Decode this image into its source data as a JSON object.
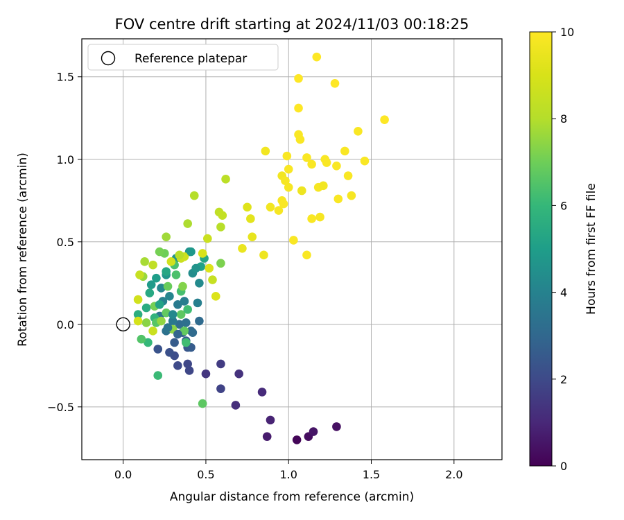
{
  "chart_data": {
    "type": "scatter",
    "title": "FOV centre drift starting at 2024/11/03 00:18:25",
    "xlabel": "Angular distance from reference (arcmin)",
    "ylabel": "Rotation from reference (arcmin)",
    "xlim": [
      -0.25,
      2.29
    ],
    "ylim": [
      -0.82,
      1.73
    ],
    "xticks": [
      0.0,
      0.5,
      1.0,
      1.5,
      2.0
    ],
    "xtick_labels": [
      "0.0",
      "0.5",
      "1.0",
      "1.5",
      "2.0"
    ],
    "yticks": [
      -0.5,
      0.0,
      0.5,
      1.0,
      1.5
    ],
    "ytick_labels": [
      "−0.5",
      "0.0",
      "0.5",
      "1.0",
      "1.5"
    ],
    "grid": true,
    "legend": {
      "placement": "top-left",
      "entries": [
        "Reference platepar"
      ]
    },
    "reference_point": {
      "x": 0.0,
      "y": 0.0,
      "label": "Reference platepar"
    },
    "colorbar": {
      "label": "Hours from first FF file",
      "range": [
        0,
        10
      ],
      "ticks": [
        0,
        2,
        4,
        6,
        8,
        10
      ],
      "tick_labels": [
        "0",
        "2",
        "4",
        "6",
        "8",
        "10"
      ],
      "colormap": "viridis"
    },
    "points": [
      [
        1.05,
        -0.7,
        0.1
      ],
      [
        1.12,
        -0.68,
        0.3
      ],
      [
        1.15,
        -0.65,
        0.5
      ],
      [
        1.29,
        -0.62,
        0.4
      ],
      [
        0.87,
        -0.68,
        0.7
      ],
      [
        0.89,
        -0.58,
        0.9
      ],
      [
        0.84,
        -0.41,
        1.1
      ],
      [
        0.68,
        -0.49,
        1.2
      ],
      [
        0.7,
        -0.3,
        1.3
      ],
      [
        0.5,
        -0.3,
        1.4
      ],
      [
        0.59,
        -0.24,
        1.6
      ],
      [
        0.59,
        -0.39,
        1.8
      ],
      [
        0.4,
        -0.28,
        1.9
      ],
      [
        0.39,
        -0.24,
        1.9
      ],
      [
        0.33,
        -0.25,
        2.0
      ],
      [
        0.31,
        -0.19,
        2.1
      ],
      [
        0.28,
        -0.17,
        2.2
      ],
      [
        0.21,
        -0.15,
        2.3
      ],
      [
        0.39,
        -0.14,
        2.4
      ],
      [
        0.41,
        -0.14,
        2.6
      ],
      [
        0.31,
        -0.11,
        2.6
      ],
      [
        0.38,
        -0.1,
        2.7
      ],
      [
        0.36,
        -0.05,
        2.8
      ],
      [
        0.41,
        -0.04,
        3.0
      ],
      [
        0.46,
        0.02,
        3.1
      ],
      [
        0.34,
        0.0,
        3.2
      ],
      [
        0.38,
        0.01,
        3.3
      ],
      [
        0.26,
        -0.04,
        3.4
      ],
      [
        0.22,
        0.05,
        3.5
      ],
      [
        0.3,
        0.02,
        3.6
      ],
      [
        0.33,
        0.12,
        3.7
      ],
      [
        0.37,
        0.14,
        3.8
      ],
      [
        0.45,
        0.13,
        3.9
      ],
      [
        0.24,
        0.14,
        4.0
      ],
      [
        0.28,
        0.17,
        4.1
      ],
      [
        0.23,
        0.22,
        4.2
      ],
      [
        0.46,
        0.25,
        4.3
      ],
      [
        0.42,
        0.31,
        4.4
      ],
      [
        0.4,
        0.44,
        4.5
      ],
      [
        0.32,
        0.4,
        4.6
      ],
      [
        0.26,
        0.3,
        4.7
      ],
      [
        0.17,
        0.24,
        4.9
      ],
      [
        0.2,
        0.28,
        5.0
      ],
      [
        0.47,
        0.35,
        5.1
      ],
      [
        0.49,
        0.4,
        5.3
      ],
      [
        0.14,
        0.1,
        5.5
      ],
      [
        0.09,
        0.06,
        5.6
      ],
      [
        0.19,
        0.04,
        5.8
      ],
      [
        0.15,
        -0.11,
        6.0
      ],
      [
        0.21,
        -0.31,
        6.1
      ],
      [
        0.38,
        -0.11,
        6.2
      ],
      [
        0.35,
        0.2,
        6.3
      ],
      [
        0.31,
        0.36,
        6.4
      ],
      [
        0.11,
        -0.09,
        6.5
      ],
      [
        0.2,
        0.01,
        6.6
      ],
      [
        0.48,
        -0.48,
        6.7
      ],
      [
        0.37,
        -0.04,
        6.8
      ],
      [
        0.27,
        0.23,
        6.9
      ],
      [
        0.25,
        0.43,
        7.0
      ],
      [
        0.22,
        0.44,
        7.1
      ],
      [
        0.59,
        0.37,
        7.2
      ],
      [
        0.36,
        0.23,
        7.3
      ],
      [
        0.14,
        0.01,
        7.4
      ],
      [
        0.23,
        0.02,
        7.5
      ],
      [
        0.12,
        0.29,
        7.6
      ],
      [
        0.26,
        0.53,
        7.7
      ],
      [
        0.13,
        0.38,
        7.8
      ],
      [
        0.39,
        0.61,
        7.9
      ],
      [
        0.43,
        0.78,
        8.0
      ],
      [
        0.59,
        0.59,
        8.1
      ],
      [
        0.62,
        0.88,
        8.2
      ],
      [
        0.58,
        0.68,
        8.3
      ],
      [
        0.6,
        0.66,
        8.4
      ],
      [
        0.54,
        0.27,
        8.5
      ],
      [
        0.35,
        0.4,
        8.6
      ],
      [
        0.37,
        0.41,
        8.7
      ],
      [
        0.29,
        0.38,
        8.8
      ],
      [
        0.09,
        0.02,
        8.9
      ],
      [
        0.48,
        0.43,
        9.0
      ],
      [
        0.52,
        0.34,
        9.1
      ],
      [
        0.75,
        0.71,
        9.2
      ],
      [
        0.77,
        0.64,
        9.3
      ],
      [
        0.78,
        0.53,
        9.4
      ],
      [
        0.72,
        0.46,
        9.5
      ],
      [
        0.85,
        0.42,
        9.6
      ],
      [
        0.89,
        0.71,
        9.7
      ],
      [
        0.94,
        0.69,
        9.8
      ],
      [
        1.0,
        0.83,
        9.8
      ],
      [
        1.08,
        0.81,
        9.6
      ],
      [
        1.07,
        1.12,
        9.9
      ],
      [
        1.06,
        1.15,
        9.9
      ],
      [
        0.99,
        1.02,
        9.9
      ],
      [
        1.0,
        0.94,
        9.9
      ],
      [
        0.96,
        0.9,
        9.7
      ],
      [
        0.98,
        0.87,
        9.8
      ],
      [
        1.03,
        0.51,
        9.9
      ],
      [
        1.11,
        0.42,
        9.9
      ],
      [
        1.14,
        0.64,
        9.9
      ],
      [
        1.19,
        0.65,
        9.8
      ],
      [
        1.18,
        0.83,
        9.8
      ],
      [
        1.21,
        0.84,
        9.7
      ],
      [
        1.14,
        0.97,
        9.9
      ],
      [
        1.22,
        1.0,
        9.9
      ],
      [
        1.29,
        0.96,
        9.9
      ],
      [
        1.23,
        0.98,
        9.9
      ],
      [
        1.34,
        1.05,
        9.9
      ],
      [
        1.42,
        1.17,
        9.9
      ],
      [
        1.46,
        0.99,
        9.9
      ],
      [
        1.36,
        0.9,
        9.9
      ],
      [
        1.3,
        0.76,
        9.9
      ],
      [
        1.38,
        0.78,
        9.8
      ],
      [
        1.28,
        1.46,
        10.0
      ],
      [
        1.17,
        1.62,
        10.0
      ],
      [
        1.06,
        1.49,
        10.0
      ],
      [
        1.06,
        1.31,
        10.0
      ],
      [
        0.86,
        1.05,
        9.7
      ],
      [
        1.58,
        1.24,
        10.0
      ],
      [
        1.11,
        1.01,
        9.9
      ],
      [
        0.96,
        0.75,
        9.8
      ],
      [
        0.97,
        0.73,
        9.9
      ],
      [
        0.56,
        0.17,
        9.1
      ],
      [
        0.09,
        0.15,
        8.8
      ],
      [
        0.1,
        0.3,
        8.5
      ],
      [
        0.18,
        0.36,
        8.3
      ],
      [
        0.34,
        0.42,
        8.1
      ],
      [
        0.51,
        0.52,
        8.6
      ],
      [
        0.18,
        -0.04,
        8.6
      ],
      [
        0.3,
        -0.03,
        7.4
      ],
      [
        0.19,
        0.11,
        7.1
      ],
      [
        0.26,
        0.07,
        6.8
      ],
      [
        0.35,
        0.06,
        6.7
      ],
      [
        0.39,
        0.09,
        6.2
      ],
      [
        0.32,
        0.3,
        6.4
      ],
      [
        0.44,
        0.34,
        4.6
      ],
      [
        0.41,
        0.44,
        4.8
      ],
      [
        0.26,
        0.32,
        5.3
      ],
      [
        0.16,
        0.19,
        5.4
      ],
      [
        0.22,
        0.12,
        5.2
      ],
      [
        0.3,
        0.06,
        4.2
      ],
      [
        0.27,
        -0.02,
        3.5
      ],
      [
        0.33,
        -0.06,
        2.9
      ],
      [
        0.42,
        -0.05,
        3.1
      ]
    ]
  }
}
